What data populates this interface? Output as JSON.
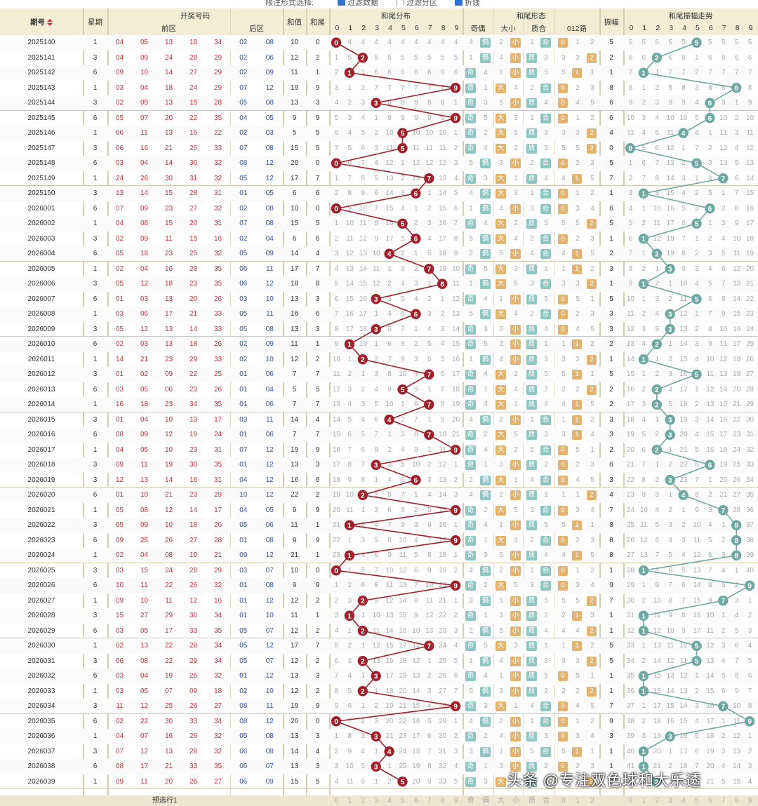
{
  "top": {
    "label": "限注形式选择:",
    "opt1": "过滤数据",
    "opt2": "过滤分区",
    "opt3": "折线"
  },
  "header": {
    "issue": "期号",
    "week": "星期",
    "draw": "开奖号码",
    "front": "前区",
    "back": "后区",
    "sum": "和值",
    "tail": "和尾",
    "dist": "和尾分布",
    "form": "和尾形态",
    "parity": "奇偶",
    "size": "大小",
    "prime": "质合",
    "road": "012路",
    "amp": "振幅",
    "ampdist": "和尾振幅走势",
    "digits": [
      "0",
      "1",
      "2",
      "3",
      "4",
      "5",
      "6",
      "7",
      "8",
      "9"
    ]
  },
  "tags": {
    "odd": "奇",
    "even": "偶",
    "big": "大",
    "small": "小",
    "prime": "质",
    "comp": "合"
  },
  "footer": {
    "label": "预选行1",
    "digits": [
      "0",
      "1",
      "2",
      "3",
      "4",
      "5",
      "6",
      "7",
      "8",
      "9"
    ],
    "form": [
      "奇",
      "偶",
      "大",
      "小",
      "质",
      "合",
      "0",
      "1",
      "2"
    ]
  },
  "watermark": "头条 @专注双色球和大乐透",
  "colors": {
    "header_bg": "#f4ecd4",
    "red_ball": "#c8313c",
    "blue_ball": "#2a55a8",
    "trend_red": "#a0202c",
    "trend_teal": "#6fa8a0",
    "tag_green": "#8fc6c2",
    "tag_orange": "#e3b470"
  },
  "rows": [
    {
      "issue": "2025140",
      "week": "1",
      "front": [
        "04",
        "05",
        "13",
        "18",
        "34"
      ],
      "back": [
        "02",
        "08"
      ],
      "sum": "10",
      "tail": "0",
      "amp": "5",
      "at": 5
    },
    {
      "issue": "2025141",
      "week": "3",
      "front": [
        "04",
        "09",
        "24",
        "28",
        "29"
      ],
      "back": [
        "02",
        "06"
      ],
      "sum": "12",
      "tail": "2",
      "amp": "2",
      "at": 2
    },
    {
      "issue": "2025142",
      "week": "6",
      "front": [
        "09",
        "10",
        "14",
        "27",
        "29"
      ],
      "back": [
        "02",
        "09"
      ],
      "sum": "11",
      "tail": "1",
      "amp": "1",
      "at": 1
    },
    {
      "issue": "2025143",
      "week": "1",
      "front": [
        "03",
        "04",
        "18",
        "24",
        "29"
      ],
      "back": [
        "07",
        "12"
      ],
      "sum": "19",
      "tail": "9",
      "amp": "8",
      "at": 8
    },
    {
      "issue": "2025144",
      "week": "3",
      "front": [
        "02",
        "05",
        "13",
        "15",
        "28"
      ],
      "back": [
        "05",
        "08"
      ],
      "sum": "13",
      "tail": "3",
      "amp": "6",
      "at": 6
    },
    {
      "issue": "2025145",
      "week": "6",
      "front": [
        "05",
        "07",
        "20",
        "22",
        "35"
      ],
      "back": [
        "04",
        "05"
      ],
      "sum": "9",
      "tail": "9",
      "amp": "6",
      "at": 6
    },
    {
      "issue": "2025146",
      "week": "1",
      "front": [
        "06",
        "11",
        "13",
        "16",
        "22"
      ],
      "back": [
        "02",
        "03"
      ],
      "sum": "5",
      "tail": "5",
      "amp": "4",
      "at": 4
    },
    {
      "issue": "2025147",
      "week": "3",
      "front": [
        "06",
        "16",
        "21",
        "25",
        "33"
      ],
      "back": [
        "07",
        "08"
      ],
      "sum": "15",
      "tail": "5",
      "amp": "0",
      "at": 0
    },
    {
      "issue": "2025148",
      "week": "6",
      "front": [
        "03",
        "04",
        "14",
        "30",
        "32"
      ],
      "back": [
        "08",
        "12"
      ],
      "sum": "20",
      "tail": "0",
      "amp": "5",
      "at": 5
    },
    {
      "issue": "2025149",
      "week": "1",
      "front": [
        "24",
        "26",
        "30",
        "31",
        "32"
      ],
      "back": [
        "05",
        "12"
      ],
      "sum": "17",
      "tail": "7",
      "amp": "7",
      "at": 7
    },
    {
      "issue": "2025150",
      "week": "3",
      "front": [
        "13",
        "14",
        "15",
        "28",
        "31"
      ],
      "back": [
        "01",
        "05"
      ],
      "sum": "6",
      "tail": "6",
      "amp": "1",
      "at": 1
    },
    {
      "issue": "2026001",
      "week": "6",
      "front": [
        "07",
        "09",
        "23",
        "27",
        "32"
      ],
      "back": [
        "02",
        "08"
      ],
      "sum": "10",
      "tail": "0",
      "amp": "6",
      "at": 6
    },
    {
      "issue": "2026002",
      "week": "1",
      "front": [
        "04",
        "08",
        "15",
        "20",
        "31"
      ],
      "back": [
        "07",
        "08"
      ],
      "sum": "15",
      "tail": "5",
      "amp": "5",
      "at": 5
    },
    {
      "issue": "2026003",
      "week": "3",
      "front": [
        "02",
        "09",
        "11",
        "15",
        "16"
      ],
      "back": [
        "02",
        "04"
      ],
      "sum": "6",
      "tail": "6",
      "amp": "1",
      "at": 1
    },
    {
      "issue": "2026004",
      "week": "6",
      "front": [
        "05",
        "18",
        "23",
        "25",
        "32"
      ],
      "back": [
        "05",
        "09"
      ],
      "sum": "14",
      "tail": "4",
      "amp": "2",
      "at": 2
    },
    {
      "issue": "2026005",
      "week": "1",
      "front": [
        "02",
        "04",
        "16",
        "23",
        "35"
      ],
      "back": [
        "06",
        "11"
      ],
      "sum": "17",
      "tail": "7",
      "amp": "3",
      "at": 3
    },
    {
      "issue": "2026006",
      "week": "3",
      "front": [
        "05",
        "12",
        "18",
        "23",
        "35"
      ],
      "back": [
        "06",
        "12"
      ],
      "sum": "18",
      "tail": "8",
      "amp": "1",
      "at": 1
    },
    {
      "issue": "2026007",
      "week": "6",
      "front": [
        "01",
        "03",
        "13",
        "20",
        "26"
      ],
      "back": [
        "03",
        "10"
      ],
      "sum": "13",
      "tail": "3",
      "amp": "5",
      "at": 5
    },
    {
      "issue": "2026008",
      "week": "1",
      "front": [
        "03",
        "06",
        "17",
        "21",
        "33"
      ],
      "back": [
        "05",
        "11"
      ],
      "sum": "16",
      "tail": "6",
      "amp": "3",
      "at": 3
    },
    {
      "issue": "2026009",
      "week": "3",
      "front": [
        "05",
        "12",
        "13",
        "14",
        "33"
      ],
      "back": [
        "05",
        "08"
      ],
      "sum": "13",
      "tail": "3",
      "amp": "3",
      "at": 3
    },
    {
      "issue": "2026010",
      "week": "6",
      "front": [
        "02",
        "03",
        "13",
        "18",
        "26"
      ],
      "back": [
        "02",
        "09"
      ],
      "sum": "11",
      "tail": "1",
      "amp": "2",
      "at": 2
    },
    {
      "issue": "2026011",
      "week": "1",
      "front": [
        "14",
        "21",
        "23",
        "29",
        "33"
      ],
      "back": [
        "02",
        "10"
      ],
      "sum": "12",
      "tail": "2",
      "amp": "1",
      "at": 1
    },
    {
      "issue": "2026012",
      "week": "3",
      "front": [
        "01",
        "02",
        "09",
        "22",
        "25"
      ],
      "back": [
        "01",
        "06"
      ],
      "sum": "7",
      "tail": "7",
      "amp": "5",
      "at": 5
    },
    {
      "issue": "2026013",
      "week": "6",
      "front": [
        "03",
        "05",
        "06",
        "23",
        "26"
      ],
      "back": [
        "01",
        "04"
      ],
      "sum": "5",
      "tail": "5",
      "amp": "2",
      "at": 2
    },
    {
      "issue": "2026014",
      "week": "1",
      "front": [
        "16",
        "18",
        "23",
        "34",
        "35"
      ],
      "back": [
        "01",
        "06"
      ],
      "sum": "7",
      "tail": "7",
      "amp": "2",
      "at": 2
    },
    {
      "issue": "2026015",
      "week": "3",
      "front": [
        "01",
        "04",
        "10",
        "13",
        "17"
      ],
      "back": [
        "03",
        "11"
      ],
      "sum": "14",
      "tail": "4",
      "amp": "3",
      "at": 3
    },
    {
      "issue": "2026016",
      "week": "6",
      "front": [
        "08",
        "09",
        "12",
        "19",
        "24"
      ],
      "back": [
        "01",
        "06"
      ],
      "sum": "7",
      "tail": "7",
      "amp": "3",
      "at": 3
    },
    {
      "issue": "2026017",
      "week": "1",
      "front": [
        "04",
        "05",
        "10",
        "23",
        "31"
      ],
      "back": [
        "07",
        "12"
      ],
      "sum": "19",
      "tail": "9",
      "amp": "2",
      "at": 2
    },
    {
      "issue": "2026018",
      "week": "3",
      "front": [
        "09",
        "11",
        "19",
        "30",
        "35"
      ],
      "back": [
        "01",
        "12"
      ],
      "sum": "13",
      "tail": "3",
      "amp": "6",
      "at": 6
    },
    {
      "issue": "2026019",
      "week": "3",
      "front": [
        "12",
        "13",
        "14",
        "16",
        "31"
      ],
      "back": [
        "04",
        "12"
      ],
      "sum": "16",
      "tail": "6",
      "amp": "3",
      "at": 3
    },
    {
      "issue": "2026020",
      "week": "6",
      "front": [
        "01",
        "10",
        "21",
        "23",
        "29"
      ],
      "back": [
        "10",
        "12"
      ],
      "sum": "22",
      "tail": "2",
      "amp": "4",
      "at": 4
    },
    {
      "issue": "2026021",
      "week": "1",
      "front": [
        "05",
        "08",
        "12",
        "14",
        "17"
      ],
      "back": [
        "04",
        "05"
      ],
      "sum": "9",
      "tail": "9",
      "amp": "7",
      "at": 7
    },
    {
      "issue": "2026022",
      "week": "3",
      "front": [
        "05",
        "09",
        "10",
        "18",
        "26"
      ],
      "back": [
        "05",
        "06"
      ],
      "sum": "11",
      "tail": "1",
      "amp": "8",
      "at": 8
    },
    {
      "issue": "2026023",
      "week": "6",
      "front": [
        "09",
        "25",
        "26",
        "27",
        "28"
      ],
      "back": [
        "01",
        "08"
      ],
      "sum": "9",
      "tail": "9",
      "amp": "8",
      "at": 8
    },
    {
      "issue": "2026024",
      "week": "1",
      "front": [
        "02",
        "04",
        "08",
        "10",
        "21"
      ],
      "back": [
        "09",
        "12"
      ],
      "sum": "21",
      "tail": "1",
      "amp": "8",
      "at": 8
    },
    {
      "issue": "2026025",
      "week": "3",
      "front": [
        "03",
        "15",
        "24",
        "28",
        "29"
      ],
      "back": [
        "03",
        "07"
      ],
      "sum": "10",
      "tail": "0",
      "amp": "1",
      "at": 1
    },
    {
      "issue": "2026026",
      "week": "6",
      "front": [
        "10",
        "11",
        "22",
        "26",
        "32"
      ],
      "back": [
        "01",
        "08"
      ],
      "sum": "9",
      "tail": "9",
      "amp": "9",
      "at": 9
    },
    {
      "issue": "2026027",
      "week": "1",
      "front": [
        "09",
        "10",
        "11",
        "12",
        "16"
      ],
      "back": [
        "01",
        "12"
      ],
      "sum": "12",
      "tail": "2",
      "amp": "7",
      "at": 7
    },
    {
      "issue": "2026028",
      "week": "3",
      "front": [
        "15",
        "27",
        "29",
        "30",
        "34"
      ],
      "back": [
        "01",
        "10"
      ],
      "sum": "11",
      "tail": "1",
      "amp": "1",
      "at": 1
    },
    {
      "issue": "2026029",
      "week": "6",
      "front": [
        "03",
        "05",
        "17",
        "33",
        "35"
      ],
      "back": [
        "05",
        "07"
      ],
      "sum": "12",
      "tail": "2",
      "amp": "1",
      "at": 1
    },
    {
      "issue": "2026030",
      "week": "1",
      "front": [
        "02",
        "13",
        "22",
        "28",
        "34"
      ],
      "back": [
        "05",
        "12"
      ],
      "sum": "17",
      "tail": "7",
      "amp": "5",
      "at": 5
    },
    {
      "issue": "2026031",
      "week": "3",
      "front": [
        "06",
        "08",
        "22",
        "29",
        "34"
      ],
      "back": [
        "05",
        "07"
      ],
      "sum": "12",
      "tail": "2",
      "amp": "5",
      "at": 5
    },
    {
      "issue": "2026032",
      "week": "6",
      "front": [
        "03",
        "04",
        "19",
        "26",
        "32"
      ],
      "back": [
        "01",
        "12"
      ],
      "sum": "13",
      "tail": "3",
      "amp": "1",
      "at": 1
    },
    {
      "issue": "2026033",
      "week": "1",
      "front": [
        "03",
        "05",
        "07",
        "09",
        "18"
      ],
      "back": [
        "02",
        "10"
      ],
      "sum": "12",
      "tail": "2",
      "amp": "1",
      "at": 1
    },
    {
      "issue": "2026034",
      "week": "3",
      "front": [
        "11",
        "12",
        "25",
        "26",
        "27"
      ],
      "back": [
        "08",
        "11"
      ],
      "sum": "19",
      "tail": "9",
      "amp": "7",
      "at": 7
    },
    {
      "issue": "2026035",
      "week": "6",
      "front": [
        "02",
        "22",
        "30",
        "33",
        "34"
      ],
      "back": [
        "08",
        "12"
      ],
      "sum": "20",
      "tail": "0",
      "amp": "9",
      "at": 9
    },
    {
      "issue": "2026036",
      "week": "1",
      "front": [
        "04",
        "07",
        "16",
        "26",
        "32"
      ],
      "back": [
        "05",
        "08"
      ],
      "sum": "13",
      "tail": "3",
      "amp": "3",
      "at": 3
    },
    {
      "issue": "2026037",
      "week": "3",
      "front": [
        "07",
        "12",
        "13",
        "28",
        "32"
      ],
      "back": [
        "06",
        "08"
      ],
      "sum": "14",
      "tail": "4",
      "amp": "1",
      "at": 1
    },
    {
      "issue": "2026038",
      "week": "6",
      "front": [
        "08",
        "17",
        "21",
        "33",
        "35"
      ],
      "back": [
        "06",
        "07"
      ],
      "sum": "13",
      "tail": "3",
      "amp": "1",
      "at": 1
    },
    {
      "issue": "2026039",
      "week": "1",
      "front": [
        "09",
        "11",
        "20",
        "26",
        "27"
      ],
      "back": [
        "06",
        "09"
      ],
      "sum": "15",
      "tail": "5",
      "amp": "2",
      "at": 2
    }
  ]
}
